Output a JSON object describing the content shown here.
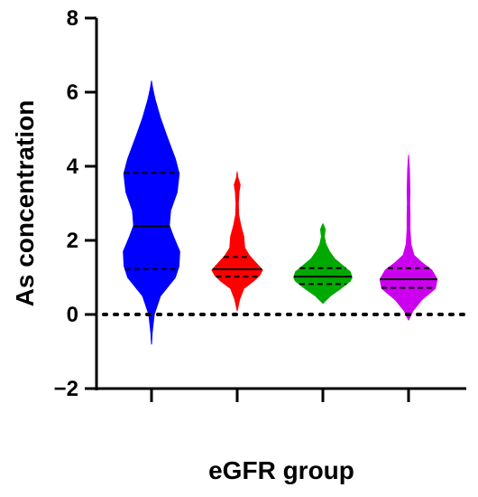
{
  "chart_data": {
    "type": "violin",
    "title": "",
    "xlabel": "eGFR group",
    "ylabel": "As concentration",
    "ylim": [
      -2,
      8
    ],
    "yticks": [
      -2,
      0,
      2,
      4,
      6,
      8
    ],
    "grid": false,
    "legend": "none",
    "reference_line": {
      "y": 0,
      "style": "dotted"
    },
    "categories": [
      "",
      "",
      "",
      ""
    ],
    "groups": [
      {
        "color": "#0000ff",
        "median": 2.38,
        "q1": 1.22,
        "q3": 3.82,
        "density": [
          [
            -0.8,
            0.0
          ],
          [
            -0.5,
            0.02
          ],
          [
            0.0,
            0.09
          ],
          [
            0.5,
            0.3
          ],
          [
            1.0,
            0.8
          ],
          [
            1.3,
            0.92
          ],
          [
            1.7,
            0.95
          ],
          [
            2.1,
            0.74
          ],
          [
            2.4,
            0.6
          ],
          [
            2.8,
            0.64
          ],
          [
            3.3,
            0.86
          ],
          [
            3.8,
            0.93
          ],
          [
            4.2,
            0.8
          ],
          [
            4.8,
            0.52
          ],
          [
            5.3,
            0.3
          ],
          [
            5.8,
            0.12
          ],
          [
            6.1,
            0.04
          ],
          [
            6.3,
            0.0
          ]
        ]
      },
      {
        "color": "#ff0000",
        "median": 1.22,
        "q1": 1.02,
        "q3": 1.55,
        "density": [
          [
            0.1,
            0.0
          ],
          [
            0.4,
            0.08
          ],
          [
            0.7,
            0.22
          ],
          [
            0.9,
            0.55
          ],
          [
            1.05,
            0.75
          ],
          [
            1.2,
            0.85
          ],
          [
            1.4,
            0.62
          ],
          [
            1.6,
            0.4
          ],
          [
            1.8,
            0.25
          ],
          [
            2.1,
            0.22
          ],
          [
            2.4,
            0.12
          ],
          [
            2.7,
            0.05
          ],
          [
            3.0,
            0.04
          ],
          [
            3.3,
            0.06
          ],
          [
            3.5,
            0.1
          ],
          [
            3.7,
            0.02
          ],
          [
            3.85,
            0.0
          ]
        ]
      },
      {
        "color": "#00a800",
        "median": 1.02,
        "q1": 0.82,
        "q3": 1.25,
        "density": [
          [
            0.3,
            0.0
          ],
          [
            0.5,
            0.25
          ],
          [
            0.7,
            0.6
          ],
          [
            0.9,
            0.92
          ],
          [
            1.0,
            0.98
          ],
          [
            1.15,
            0.92
          ],
          [
            1.3,
            0.7
          ],
          [
            1.5,
            0.4
          ],
          [
            1.7,
            0.22
          ],
          [
            1.9,
            0.1
          ],
          [
            2.1,
            0.05
          ],
          [
            2.3,
            0.08
          ],
          [
            2.45,
            0.0
          ]
        ]
      },
      {
        "color": "#cc00ee",
        "median": 0.95,
        "q1": 0.72,
        "q3": 1.25,
        "density": [
          [
            -0.15,
            0.0
          ],
          [
            0.1,
            0.15
          ],
          [
            0.4,
            0.45
          ],
          [
            0.7,
            0.9
          ],
          [
            0.95,
            0.96
          ],
          [
            1.2,
            0.78
          ],
          [
            1.4,
            0.45
          ],
          [
            1.6,
            0.18
          ],
          [
            1.9,
            0.08
          ],
          [
            2.3,
            0.05
          ],
          [
            2.7,
            0.05
          ],
          [
            3.0,
            0.04
          ],
          [
            3.3,
            0.05
          ],
          [
            3.6,
            0.04
          ],
          [
            3.9,
            0.03
          ],
          [
            4.3,
            0.0
          ]
        ]
      }
    ]
  }
}
